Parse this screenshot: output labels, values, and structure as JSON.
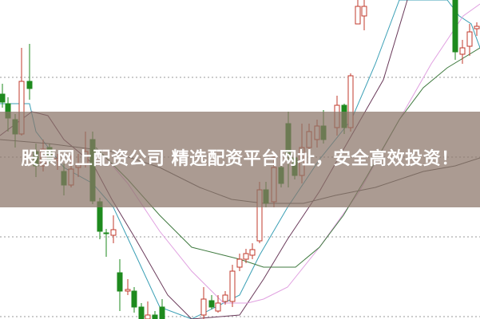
{
  "banner": {
    "title": "股票网上配资公司 精选配资平台网址，安全高效投资！"
  },
  "chart_data": {
    "type": "candlestick",
    "title": "",
    "xlabel": "",
    "ylabel": "",
    "grid": true,
    "grid_style": "dotted horizontal",
    "colors": {
      "up": "#c0392b",
      "down": "#1e8a1e",
      "ma5": "#3a9fb5",
      "ma10": "#6a3a5a",
      "ma20": "#e0a0e0",
      "ma30": "#3f7a3f",
      "ma60": "#555555",
      "grid": "#999999",
      "banner": "#8a7468"
    },
    "grid_levels": [
      303,
      203,
      103,
      3
    ],
    "candles": [
      {
        "o": 282,
        "c": 272,
        "h": 295,
        "l": 265
      },
      {
        "o": 270,
        "c": 252,
        "h": 278,
        "l": 235
      },
      {
        "o": 250,
        "c": 232,
        "h": 257,
        "l": 215
      },
      {
        "o": 232,
        "c": 298,
        "h": 340,
        "l": 230
      },
      {
        "o": 298,
        "c": 289,
        "h": 345,
        "l": 275
      },
      {
        "o": 210,
        "c": 192,
        "h": 220,
        "l": 178
      },
      {
        "o": 192,
        "c": 213,
        "h": 225,
        "l": 185
      },
      {
        "o": 215,
        "c": 200,
        "h": 220,
        "l": 195
      },
      {
        "o": 199,
        "c": 201,
        "h": 207,
        "l": 187
      },
      {
        "o": 185,
        "c": 168,
        "h": 195,
        "l": 155
      },
      {
        "o": 168,
        "c": 188,
        "h": 205,
        "l": 165
      },
      {
        "o": 190,
        "c": 195,
        "h": 207,
        "l": 178
      },
      {
        "o": 195,
        "c": 210,
        "h": 235,
        "l": 190
      },
      {
        "o": 225,
        "c": 148,
        "h": 235,
        "l": 144
      },
      {
        "o": 147,
        "c": 110,
        "h": 152,
        "l": 100
      },
      {
        "o": 108,
        "c": 107,
        "h": 113,
        "l": 78
      },
      {
        "o": 105,
        "c": 112,
        "h": 130,
        "l": 95
      },
      {
        "o": 58,
        "c": 35,
        "h": 75,
        "l": 10
      },
      {
        "o": 35,
        "c": 37,
        "h": 50,
        "l": 30
      },
      {
        "o": 35,
        "c": 15,
        "h": 40,
        "l": 8
      },
      {
        "o": 15,
        "c": 0,
        "h": 20,
        "l": 0
      },
      {
        "o": 0,
        "c": 5,
        "h": 22,
        "l": 0
      },
      {
        "o": 5,
        "c": 0,
        "h": 10,
        "l": 0
      },
      {
        "o": 15,
        "c": 0,
        "h": 25,
        "l": 0
      },
      {
        "o": 5,
        "c": 25,
        "h": 40,
        "l": 0
      },
      {
        "o": 23,
        "c": 15,
        "h": 30,
        "l": 12
      },
      {
        "o": 10,
        "c": 20,
        "h": 30,
        "l": 8
      },
      {
        "o": 22,
        "c": 30,
        "h": 35,
        "l": 18
      },
      {
        "o": 22,
        "c": 60,
        "h": 68,
        "l": 15
      },
      {
        "o": 65,
        "c": 75,
        "h": 82,
        "l": 60
      },
      {
        "o": 75,
        "c": 82,
        "h": 88,
        "l": 70
      },
      {
        "o": 80,
        "c": 87,
        "h": 95,
        "l": 75
      },
      {
        "o": 98,
        "c": 162,
        "h": 172,
        "l": 95
      },
      {
        "o": 162,
        "c": 145,
        "h": 172,
        "l": 140
      },
      {
        "o": 147,
        "c": 190,
        "h": 205,
        "l": 140
      },
      {
        "o": 190,
        "c": 170,
        "h": 195,
        "l": 165
      },
      {
        "o": 245,
        "c": 205,
        "h": 260,
        "l": 165
      },
      {
        "o": 202,
        "c": 180,
        "h": 212,
        "l": 175
      },
      {
        "o": 180,
        "c": 215,
        "h": 245,
        "l": 170
      },
      {
        "o": 215,
        "c": 235,
        "h": 245,
        "l": 205
      },
      {
        "o": 225,
        "c": 242,
        "h": 250,
        "l": 215
      },
      {
        "o": 242,
        "c": 225,
        "h": 262,
        "l": 220
      },
      {
        "o": 240,
        "c": 268,
        "h": 280,
        "l": 230
      },
      {
        "o": 268,
        "c": 240,
        "h": 270,
        "l": 232
      },
      {
        "o": 240,
        "c": 305,
        "h": 308,
        "l": 235
      },
      {
        "o": 370,
        "c": 392,
        "h": 400,
        "l": 370
      },
      {
        "o": 380,
        "c": 392,
        "h": 400,
        "l": 362
      },
      {
        "o": 400,
        "c": 335,
        "h": 400,
        "l": 325
      },
      {
        "o": 332,
        "c": 340,
        "h": 350,
        "l": 320
      },
      {
        "o": 342,
        "c": 360,
        "h": 370,
        "l": 330
      },
      {
        "o": 364,
        "c": 367,
        "h": 372,
        "l": 355
      }
    ],
    "moving_averages": [
      {
        "key": "ma5",
        "points": [
          [
            0,
            270
          ],
          [
            37,
            270
          ],
          [
            45,
            235
          ],
          [
            80,
            190
          ],
          [
            116,
            170
          ],
          [
            142,
            140
          ],
          [
            170,
            80
          ],
          [
            200,
            15
          ],
          [
            240,
            0
          ],
          [
            300,
            30
          ],
          [
            325,
            80
          ],
          [
            360,
            140
          ],
          [
            400,
            200
          ],
          [
            440,
            250
          ],
          [
            470,
            320
          ],
          [
            500,
            400
          ],
          [
            560,
            400
          ],
          [
            575,
            380
          ],
          [
            590,
            370
          ],
          [
            601,
            340
          ]
        ]
      },
      {
        "key": "ma10",
        "points": [
          [
            0,
            230
          ],
          [
            40,
            260
          ],
          [
            60,
            255
          ],
          [
            80,
            225
          ],
          [
            116,
            195
          ],
          [
            140,
            150
          ],
          [
            170,
            100
          ],
          [
            210,
            30
          ],
          [
            240,
            0
          ],
          [
            300,
            5
          ],
          [
            330,
            50
          ],
          [
            360,
            100
          ],
          [
            400,
            160
          ],
          [
            440,
            230
          ],
          [
            480,
            300
          ],
          [
            510,
            400
          ]
        ]
      },
      {
        "key": "ma20",
        "points": [
          [
            130,
            205
          ],
          [
            160,
            170
          ],
          [
            200,
            110
          ],
          [
            240,
            60
          ],
          [
            280,
            20
          ],
          [
            310,
            20
          ],
          [
            330,
            25
          ],
          [
            360,
            40
          ],
          [
            400,
            90
          ],
          [
            450,
            160
          ],
          [
            500,
            250
          ],
          [
            540,
            320
          ],
          [
            580,
            380
          ],
          [
            601,
            395
          ]
        ]
      },
      {
        "key": "ma30",
        "points": [
          [
            120,
            215
          ],
          [
            160,
            175
          ],
          [
            200,
            130
          ],
          [
            240,
            90
          ],
          [
            280,
            80
          ],
          [
            300,
            75
          ],
          [
            330,
            65
          ],
          [
            370,
            65
          ],
          [
            400,
            90
          ],
          [
            430,
            130
          ],
          [
            460,
            180
          ],
          [
            500,
            250
          ],
          [
            530,
            290
          ],
          [
            560,
            315
          ],
          [
            601,
            340
          ]
        ]
      },
      {
        "key": "ma60",
        "points": [
          [
            0,
            225
          ],
          [
            60,
            220
          ],
          [
            140,
            210
          ],
          [
            200,
            190
          ],
          [
            250,
            165
          ],
          [
            290,
            150
          ],
          [
            330,
            145
          ],
          [
            380,
            145
          ],
          [
            420,
            155
          ],
          [
            470,
            165
          ],
          [
            530,
            185
          ],
          [
            570,
            192
          ],
          [
            601,
            202
          ]
        ]
      }
    ]
  }
}
